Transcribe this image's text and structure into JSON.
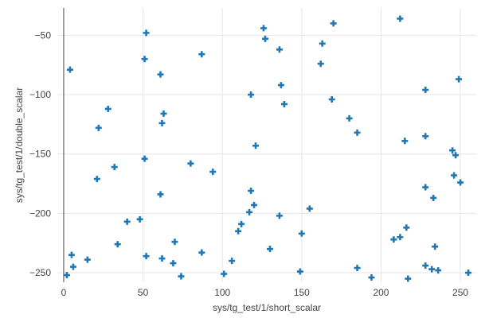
{
  "chart_data": {
    "type": "scatter",
    "xlabel": "sys/tg_test/1/short_scalar",
    "ylabel": "sys/tg_test/1/double_scalar",
    "xlim": [
      -4,
      260
    ],
    "ylim": [
      -258,
      -27
    ],
    "xticks": [
      0,
      50,
      100,
      150,
      200,
      250
    ],
    "yticks": [
      -250,
      -200,
      -150,
      -100,
      -50
    ],
    "grid": true,
    "marker": "cross",
    "marker_color": "#1f77b4",
    "series": [
      {
        "x": [
          4,
          52,
          51,
          61,
          87,
          126,
          127,
          136,
          163,
          170,
          212,
          228,
          249,
          28,
          22,
          63,
          62,
          118,
          137,
          139,
          162,
          169,
          180,
          185,
          215,
          228,
          32,
          21,
          51,
          80,
          94,
          121,
          245,
          247,
          61,
          118,
          228,
          233,
          246,
          250,
          40,
          48,
          120,
          117,
          136,
          155,
          112,
          150,
          110,
          70,
          216,
          208,
          212,
          234,
          5,
          52,
          62,
          87,
          15,
          69,
          106,
          130,
          185,
          101,
          74,
          149,
          194,
          217,
          228,
          236,
          232,
          2,
          255,
          6,
          34
        ],
        "y": [
          -79,
          -48,
          -70,
          -83,
          -66,
          -44,
          -53,
          -62,
          -57,
          -40,
          -36,
          -96,
          -87,
          -112,
          -128,
          -116,
          -124,
          -100,
          -92,
          -108,
          -74,
          -104,
          -120,
          -132,
          -139,
          -135,
          -161,
          -171,
          -154,
          -158,
          -165,
          -143,
          -147,
          -151,
          -184,
          -181,
          -178,
          -187,
          -168,
          -174,
          -207,
          -205,
          -193,
          -199,
          -202,
          -196,
          -209,
          -217,
          -215,
          -224,
          -212,
          -222,
          -220,
          -228,
          -235,
          -236,
          -238,
          -233,
          -239,
          -242,
          -240,
          -230,
          -246,
          -251,
          -253,
          -249,
          -254,
          -255,
          -244,
          -248,
          -247,
          -252,
          -250,
          -245,
          -226
        ]
      }
    ]
  }
}
